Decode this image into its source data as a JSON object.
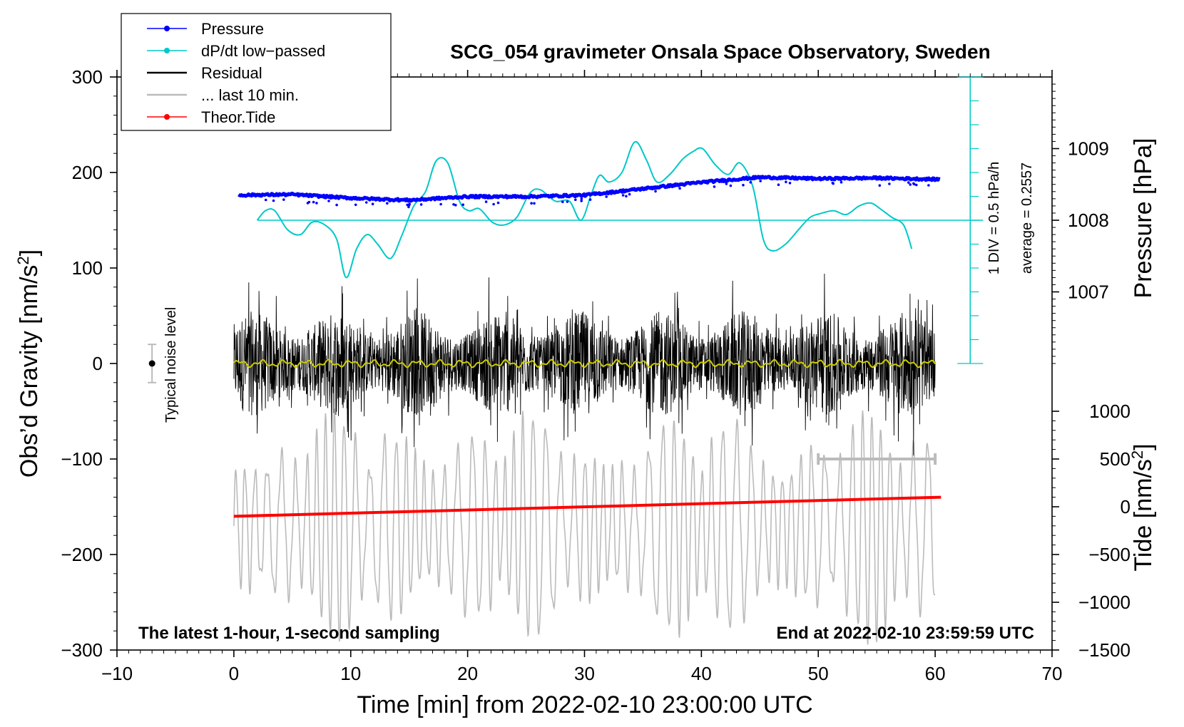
{
  "chart_data": {
    "type": "line",
    "title": "SCG_054 gravimeter Onsala Space Observatory, Sweden",
    "xlabel": "Time [min] from 2022-02-10 23:00:00 UTC",
    "ylabel_prefix": "Obs’d Gravity [nm/s",
    "ylabel_sup": "2",
    "ylabel_suffix": "]",
    "right_upper_label": "Pressure [hPa]",
    "right_lower_label_prefix": "Tide [nm/s",
    "right_lower_label_sup": "2",
    "right_lower_label_suffix": "]",
    "xlim": [
      -10,
      70
    ],
    "ylim": [
      -300,
      300
    ],
    "x_ticks": [
      -10,
      0,
      10,
      20,
      30,
      40,
      50,
      60,
      70
    ],
    "x_tick_labels": [
      "−10",
      "0",
      "10",
      "20",
      "30",
      "40",
      "50",
      "60",
      "70"
    ],
    "y_ticks": [
      300,
      200,
      100,
      0,
      -100,
      -200,
      -300
    ],
    "y_tick_labels": [
      "300",
      "200",
      "100",
      "0",
      "−100",
      "−200",
      "−300"
    ],
    "pressure_axis": {
      "ticks": [
        1009,
        1008,
        1007
      ],
      "tick_labels": [
        "1009",
        "1008",
        "1007"
      ],
      "gravity_at_1008": 150,
      "gravity_per_hPa": 75
    },
    "tide_axis": {
      "ticks": [
        1000,
        500,
        0,
        -500,
        -1000,
        -1500
      ],
      "tick_labels": [
        "1000",
        "500",
        "0",
        "−500",
        "−1000",
        "−1500"
      ],
      "gravity_at_0": -150,
      "gravity_per_nms2": 0.1
    },
    "dpdt_scale": {
      "label_1": "1 DIV = 0.5 hPa/h",
      "label_2": "average = 0.2557",
      "x": 63,
      "y_min": 0,
      "y_max": 300,
      "baseline": 150,
      "divisions": 12
    },
    "noise_level": {
      "label": "Typical noise level",
      "x": -7,
      "center": 0,
      "halfwidth": 20
    },
    "last10_bar": {
      "x_start": 50,
      "x_end": 60,
      "y": -100
    },
    "bottom_left_note": "The latest 1-hour, 1-second sampling",
    "bottom_right_note": "End at 2022-02-10 23:59:59 UTC",
    "legend": [
      {
        "name": "Pressure",
        "color": "#0000ff",
        "marker": true
      },
      {
        "name": "dP/dt low−passed",
        "color": "#00c8c8",
        "marker": true
      },
      {
        "name": "Residual",
        "color": "#000000",
        "marker": false
      },
      {
        "name": "... last 10 min.",
        "color": "#bbbbbb",
        "marker": false
      },
      {
        "name": "Theor.Tide",
        "color": "#ff0000",
        "marker": true
      }
    ],
    "series": {
      "pressure": {
        "unit": "hPa",
        "x": [
          0.4,
          5,
          10,
          15,
          20,
          25,
          30,
          35,
          40,
          45,
          50,
          55,
          60.4
        ],
        "y": [
          1008.35,
          1008.36,
          1008.31,
          1008.28,
          1008.33,
          1008.33,
          1008.35,
          1008.44,
          1008.53,
          1008.6,
          1008.58,
          1008.59,
          1008.57
        ]
      },
      "dpdt_lowpassed": {
        "unit": "gravity-units",
        "x": [
          2,
          2.7,
          3.5,
          4.6,
          5.7,
          6.7,
          7.8,
          8.8,
          9.6,
          10.5,
          11.4,
          12.3,
          13.4,
          14.4,
          15.4,
          16.4,
          17.3,
          18.3,
          19.3,
          20.1,
          21,
          22.1,
          23.1,
          24.2,
          25.3,
          26.2,
          27.5,
          28.7,
          29.7,
          30.6,
          31.3,
          32.1,
          33.2,
          34.3,
          35.3,
          36.2,
          37.3,
          38.4,
          39.3,
          40.1,
          41.2,
          42.3,
          43.3,
          44.4,
          45.3,
          46.1,
          47.2,
          48.3,
          49.3,
          50.2,
          51.3,
          52.4,
          53.5,
          54.5,
          55.3,
          56.3,
          57.3,
          58
        ],
        "y": [
          150,
          160,
          160,
          140,
          135,
          148,
          145,
          130,
          90,
          120,
          135,
          125,
          110,
          135,
          165,
          180,
          212,
          210,
          170,
          160,
          162,
          148,
          145,
          153,
          178,
          182,
          170,
          170,
          150,
          178,
          197,
          190,
          200,
          232,
          213,
          190,
          198,
          214,
          222,
          225,
          208,
          198,
          210,
          185,
          130,
          118,
          125,
          140,
          153,
          157,
          160,
          156,
          165,
          168,
          162,
          153,
          145,
          120
        ]
      },
      "residual": {
        "x_range": [
          0,
          60
        ],
        "amplitude": 100
      },
      "residual_smoothed": {
        "x_range": [
          0,
          60
        ],
        "y": 0,
        "color": "#cccc00"
      },
      "last_10_min": {
        "x_range": [
          0,
          60
        ],
        "center": -170,
        "amplitude": 120
      },
      "theoretical_tide": {
        "unit": "nm/s^2",
        "x": [
          0,
          60.5
        ],
        "y": [
          -100,
          100
        ]
      }
    }
  }
}
